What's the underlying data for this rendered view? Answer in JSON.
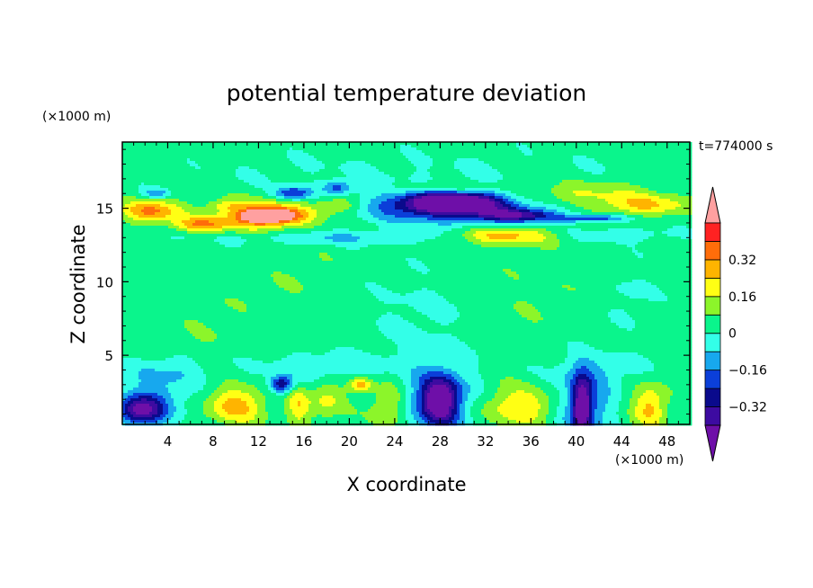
{
  "chart_data": {
    "type": "heatmap",
    "title": "potential temperature deviation",
    "xlabel": "X coordinate",
    "ylabel": "Z coordinate",
    "x_unit": "(×1000 m)",
    "y_unit": "(×1000 m)",
    "time_label": "t=774000 s",
    "xlim": [
      0,
      50
    ],
    "ylim": [
      0.3,
      19.5
    ],
    "x_ticks": [
      4,
      8,
      12,
      16,
      20,
      24,
      28,
      32,
      36,
      40,
      44,
      48
    ],
    "x_tick_labels": [
      "4",
      "8",
      "12",
      "16",
      "20",
      "24",
      "28",
      "32",
      "36",
      "40",
      "44",
      "48"
    ],
    "y_ticks": [
      5,
      10,
      15
    ],
    "y_tick_labels": [
      "5",
      "10",
      "15"
    ],
    "background_value": 0.04,
    "colorbar": {
      "levels": [
        -0.4,
        -0.32,
        -0.24,
        -0.16,
        -0.08,
        0,
        0.08,
        0.16,
        0.24,
        0.32,
        0.4
      ],
      "tick_values": [
        0.32,
        0.16,
        0,
        -0.16,
        -0.32
      ],
      "tick_labels": [
        "0.32",
        "0.16",
        "0",
        "−0.16",
        "−0.32"
      ],
      "colors": [
        "#3d0ba1",
        "#0a0a8c",
        "#0b3fd9",
        "#17a8ee",
        "#33ffe8",
        "#0af58c",
        "#8cf52a",
        "#ffff14",
        "#ffb400",
        "#ff6d0a",
        "#ff2222"
      ],
      "under_color": "#6e0fa8",
      "over_color": "#ffa0a0"
    },
    "field_features": [
      {
        "x": 25,
        "z": 17.5,
        "rx": 25,
        "rz": 1.5,
        "v": 0.0
      },
      {
        "x": 28.5,
        "z": 16.4,
        "rx": 4.0,
        "rz": 0.4,
        "v": 0.18
      },
      {
        "x": 19,
        "z": 16.4,
        "rx": 1.3,
        "rz": 0.45,
        "v": -0.18
      },
      {
        "x": 15,
        "z": 16.0,
        "rx": 1.6,
        "rz": 0.45,
        "v": -0.25
      },
      {
        "x": 3,
        "z": 16.0,
        "rx": 1.2,
        "rz": 0.35,
        "v": -0.14
      },
      {
        "x": 40,
        "z": 16.0,
        "rx": 6.0,
        "rz": 0.8,
        "v": 0.18
      },
      {
        "x": 46,
        "z": 15.2,
        "rx": 4.0,
        "rz": 0.7,
        "v": 0.24
      },
      {
        "x": 29,
        "z": 15.1,
        "rx": 7.0,
        "rz": 1.1,
        "v": -0.35
      },
      {
        "x": 29,
        "z": 15.4,
        "rx": 3.5,
        "rz": 0.6,
        "v": -0.43
      },
      {
        "x": 35,
        "z": 14.5,
        "rx": 3.5,
        "rz": 0.45,
        "v": -0.27
      },
      {
        "x": 41.5,
        "z": 14.3,
        "rx": 3.0,
        "rz": 0.25,
        "v": -0.22
      },
      {
        "x": 2.5,
        "z": 14.8,
        "rx": 2.5,
        "rz": 0.7,
        "v": 0.35
      },
      {
        "x": 7.0,
        "z": 13.9,
        "rx": 2.5,
        "rz": 0.5,
        "v": 0.3
      },
      {
        "x": 12.5,
        "z": 14.5,
        "rx": 4.0,
        "rz": 1.0,
        "v": 0.32
      },
      {
        "x": 13,
        "z": 14.5,
        "rx": 2.5,
        "rz": 0.5,
        "v": 0.45
      },
      {
        "x": 19,
        "z": 15.2,
        "rx": 2.0,
        "rz": 0.6,
        "v": 0.2
      },
      {
        "x": 9,
        "z": 15.2,
        "rx": 1.5,
        "rz": 0.4,
        "v": 0.15
      },
      {
        "x": 33.5,
        "z": 13.1,
        "rx": 4.5,
        "rz": 0.6,
        "v": 0.3
      },
      {
        "x": 20,
        "z": 13.0,
        "rx": 12.0,
        "rz": 0.5,
        "v": -0.08
      },
      {
        "x": 44,
        "z": 13.2,
        "rx": 5.0,
        "rz": 0.5,
        "v": -0.06
      },
      {
        "x": 14,
        "z": 3.0,
        "rx": 1.0,
        "rz": 0.6,
        "v": -0.3
      },
      {
        "x": 21,
        "z": 3.0,
        "rx": 1.0,
        "rz": 0.5,
        "v": 0.3
      },
      {
        "x": 28,
        "z": 2.0,
        "rx": 1.5,
        "rz": 1.6,
        "v": -0.35
      },
      {
        "x": 28,
        "z": 1.8,
        "rx": 3.5,
        "rz": 2.2,
        "v": -0.2
      },
      {
        "x": 40.5,
        "z": 1.5,
        "rx": 0.8,
        "rz": 2.0,
        "v": -0.38
      },
      {
        "x": 40.5,
        "z": 1.5,
        "rx": 2.5,
        "rz": 2.2,
        "v": -0.2
      },
      {
        "x": 1.5,
        "z": 1.2,
        "rx": 2.0,
        "rz": 1.0,
        "v": -0.35
      },
      {
        "x": 3,
        "z": 2.0,
        "rx": 3.0,
        "rz": 1.5,
        "v": -0.12
      },
      {
        "x": 10,
        "z": 1.6,
        "rx": 2.5,
        "rz": 1.2,
        "v": 0.28
      },
      {
        "x": 15.5,
        "z": 1.5,
        "rx": 1.0,
        "rz": 1.2,
        "v": 0.22
      },
      {
        "x": 18,
        "z": 2.0,
        "rx": 1.5,
        "rz": 1.3,
        "v": 0.18
      },
      {
        "x": 23.5,
        "z": 1.6,
        "rx": 1.5,
        "rz": 1.5,
        "v": 0.22
      },
      {
        "x": 35,
        "z": 1.5,
        "rx": 4.0,
        "rz": 1.3,
        "v": 0.24
      },
      {
        "x": 46.5,
        "z": 1.5,
        "rx": 1.5,
        "rz": 1.5,
        "v": 0.26
      },
      {
        "x": 4,
        "z": 4.0,
        "rx": 4.0,
        "rz": 1.0,
        "v": -0.06
      },
      {
        "x": 18,
        "z": 4.2,
        "rx": 6.0,
        "rz": 1.0,
        "v": -0.07
      },
      {
        "x": 26,
        "z": 7.5,
        "rx": 4.0,
        "rz": 3.0,
        "v": -0.02
      },
      {
        "x": 8,
        "z": 7.0,
        "rx": 3.0,
        "rz": 2.5,
        "v": 0.07
      },
      {
        "x": 36,
        "z": 9.0,
        "rx": 3.0,
        "rz": 2.0,
        "v": 0.07
      },
      {
        "x": 45,
        "z": 9.0,
        "rx": 2.0,
        "rz": 2.0,
        "v": -0.02
      },
      {
        "x": 16,
        "z": 10.0,
        "rx": 3.0,
        "rz": 2.0,
        "v": 0.07
      },
      {
        "x": 42,
        "z": 4.0,
        "rx": 4.0,
        "rz": 1.2,
        "v": -0.06
      },
      {
        "x": 4,
        "z": 17.5,
        "rx": 3.0,
        "rz": 1.5,
        "v": 0.06
      }
    ]
  }
}
